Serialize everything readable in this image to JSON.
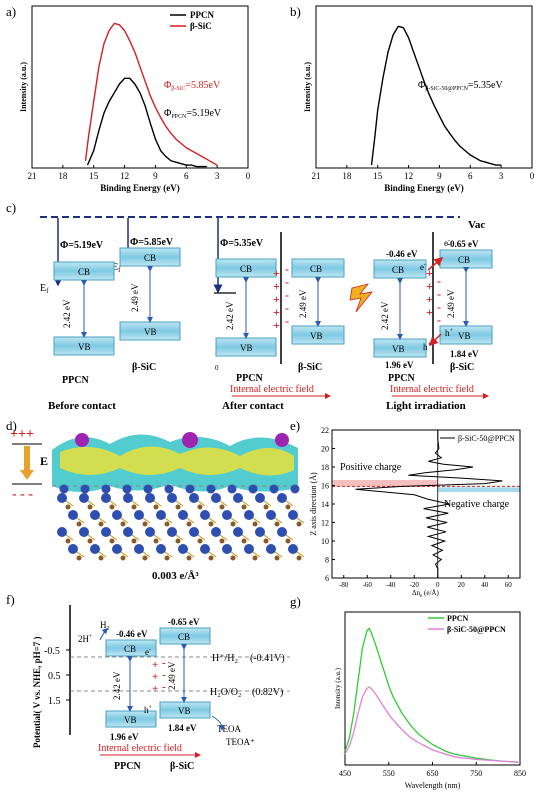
{
  "chart_data": [
    {
      "panel": "a)",
      "type": "line",
      "xlabel": "Binding Energy (eV)",
      "ylabel": "Intensity (a.u.)",
      "xlim": [
        21,
        0
      ],
      "x_ticks": [
        "21",
        "18",
        "15",
        "12",
        "9",
        "6",
        "3",
        "0"
      ],
      "legend": "top-right",
      "series": [
        {
          "name": "PPCN",
          "color": "#000000",
          "x": [
            15.6,
            15.0,
            14.5,
            14.0,
            13.5,
            13.0,
            12.5,
            12.0,
            11.5,
            11.0,
            10.5,
            10.0,
            9.5,
            9.0,
            8.5,
            8.0,
            7.5,
            7.0,
            6.5,
            6.0,
            5.5,
            5.0,
            4.5,
            4.0
          ],
          "y": [
            0.02,
            0.12,
            0.26,
            0.38,
            0.46,
            0.52,
            0.58,
            0.62,
            0.62,
            0.58,
            0.52,
            0.43,
            0.31,
            0.2,
            0.12,
            0.08,
            0.05,
            0.04,
            0.03,
            0.02,
            0.02,
            0.01,
            0.01,
            0.01
          ]
        },
        {
          "name": "β-SiC",
          "color": "#d42020",
          "x": [
            15.8,
            15.5,
            15.0,
            14.5,
            14.0,
            13.5,
            13.0,
            12.5,
            12.0,
            11.5,
            11.0,
            10.5,
            10.0,
            9.5,
            9.0,
            8.5,
            8.0,
            7.5,
            7.0,
            6.5,
            6.0,
            5.5,
            5.0,
            4.5,
            4.0,
            3.5,
            3.0
          ],
          "y": [
            0.05,
            0.22,
            0.46,
            0.7,
            0.86,
            0.95,
            1.0,
            0.99,
            0.95,
            0.88,
            0.8,
            0.7,
            0.6,
            0.5,
            0.42,
            0.35,
            0.29,
            0.24,
            0.2,
            0.17,
            0.14,
            0.12,
            0.1,
            0.08,
            0.06,
            0.04,
            0.02
          ]
        }
      ],
      "annotations": [
        {
          "text": "Φ",
          "sub": "β-SiC",
          "value": "=5.85eV",
          "color": "#d42020"
        },
        {
          "text": "Φ",
          "sub": "PPCN",
          "value": "=5.19eV",
          "color": "#000000"
        }
      ]
    },
    {
      "panel": "b)",
      "type": "line",
      "xlabel": "Binding Energy (eV)",
      "ylabel": "Intensity (a.u.)",
      "xlim": [
        21,
        0
      ],
      "x_ticks": [
        "21",
        "18",
        "15",
        "12",
        "9",
        "6",
        "3",
        "0"
      ],
      "series": [
        {
          "name": "",
          "color": "#000000",
          "x": [
            15.6,
            15.3,
            15.0,
            14.5,
            14.0,
            13.5,
            13.0,
            12.5,
            12.0,
            11.5,
            11.0,
            10.5,
            10.0,
            9.5,
            9.0,
            8.5,
            8.0,
            7.5,
            7.0,
            6.5,
            6.0,
            5.5,
            5.0,
            4.5,
            4.0,
            3.5,
            3.0
          ],
          "y": [
            0.02,
            0.2,
            0.4,
            0.62,
            0.8,
            0.92,
            0.98,
            0.97,
            0.9,
            0.8,
            0.7,
            0.6,
            0.51,
            0.43,
            0.36,
            0.29,
            0.24,
            0.19,
            0.15,
            0.12,
            0.09,
            0.07,
            0.05,
            0.04,
            0.03,
            0.02,
            0.02
          ]
        }
      ],
      "annotations": [
        {
          "text": "Φ",
          "sub": "β-SiC-50@PPCN",
          "value": "=5.35eV",
          "color": "#000000"
        }
      ]
    },
    {
      "panel": "e)",
      "type": "line",
      "xlabel": "Δn",
      "xlabel_sub": "e",
      "xlabel_unit": "(e/Å)",
      "ylabel": "Z axis direction (Å)",
      "xlim": [
        -90,
        70
      ],
      "ylim": [
        6,
        22
      ],
      "x_ticks": [
        "-80",
        "-60",
        "-40",
        "-20",
        "0",
        "20",
        "40",
        "60"
      ],
      "y_ticks": [
        "6",
        "8",
        "10",
        "12",
        "14",
        "16",
        "18",
        "20",
        "22"
      ],
      "series": [
        {
          "name": "β-SiC-50@PPCN",
          "color": "#000000",
          "y": [
            6.0,
            7.0,
            7.5,
            8.0,
            8.5,
            9.0,
            9.5,
            10.0,
            10.5,
            11.0,
            11.5,
            12.0,
            12.5,
            13.0,
            13.5,
            14.0,
            14.5,
            15.0,
            15.3,
            15.6,
            15.9,
            16.2,
            16.5,
            16.8,
            17.1,
            17.4,
            17.7,
            18.0,
            18.3,
            18.6,
            19.0,
            19.5,
            20.0,
            21.0,
            22.0
          ],
          "x": [
            0,
            0,
            -2,
            3,
            -4,
            4,
            -5,
            6,
            -8,
            7,
            -9,
            8,
            -10,
            9,
            -12,
            10,
            -8,
            -20,
            -45,
            -70,
            -30,
            40,
            55,
            20,
            -25,
            -10,
            15,
            30,
            5,
            -8,
            3,
            -2,
            1,
            0,
            0
          ]
        }
      ],
      "annotations": [
        {
          "text": "Positive charge"
        },
        {
          "text": "Negative charge"
        }
      ]
    },
    {
      "panel": "g)",
      "type": "line",
      "xlabel": "Wavelength (nm)",
      "ylabel": "Intensity (a.u.)",
      "xlim": [
        450,
        850
      ],
      "x_ticks": [
        "450",
        "550",
        "650",
        "750",
        "850"
      ],
      "legend": "top-right",
      "series": [
        {
          "name": "PPCN",
          "color": "#33cc33",
          "x": [
            450,
            460,
            470,
            480,
            490,
            500,
            505,
            510,
            520,
            530,
            540,
            550,
            560,
            580,
            600,
            620,
            650,
            680,
            700,
            750,
            800,
            850
          ],
          "y": [
            0.1,
            0.2,
            0.38,
            0.62,
            0.86,
            0.98,
            1.0,
            0.97,
            0.88,
            0.78,
            0.68,
            0.58,
            0.5,
            0.38,
            0.29,
            0.22,
            0.15,
            0.1,
            0.08,
            0.05,
            0.03,
            0.02
          ]
        },
        {
          "name": "β-SiC-50@PPCN",
          "color": "#e080e0",
          "x": [
            450,
            460,
            470,
            480,
            490,
            500,
            505,
            510,
            520,
            530,
            540,
            550,
            560,
            580,
            600,
            620,
            650,
            680,
            700,
            750,
            800,
            850
          ],
          "y": [
            0.08,
            0.14,
            0.24,
            0.38,
            0.5,
            0.56,
            0.57,
            0.56,
            0.52,
            0.47,
            0.42,
            0.37,
            0.33,
            0.26,
            0.2,
            0.16,
            0.11,
            0.08,
            0.06,
            0.04,
            0.03,
            0.02
          ]
        }
      ]
    }
  ],
  "panel_labels": {
    "a": "a)",
    "b": "b)",
    "c": "c)",
    "d": "d)",
    "e": "e)",
    "f": "f)",
    "g": "g)"
  },
  "diagram_c": {
    "vac": "Vac",
    "phi_ppcn": "Φ=5.19eV",
    "phi_sic": "Φ=5.85eV",
    "phi_after": "Φ=5.35eV",
    "ef": "E",
    "ef_sub": "f",
    "cb": "CB",
    "vb": "VB",
    "gap_ppcn": "2.42 eV",
    "gap_sic": "2.49 eV",
    "ppcn": "PPCN",
    "sic": "β-SiC",
    "before": "Before contact",
    "after": "After contact",
    "light": "Light irradiation",
    "ief": "Internal electric field",
    "cb_ppcn_e": "-0.46 eV",
    "cb_sic_e": "-0.65 eV",
    "vb_ppcn_e": "1.96 eV",
    "vb_sic_e": "1.84 eV",
    "electron": "e",
    "hole": "h",
    "small_o": "0"
  },
  "panel_d": {
    "e_label": "E",
    "iso": "0.003 e/Å³"
  },
  "diagram_f": {
    "ylabel": "Potential( V vs. NHE, pH=7 )",
    "ticks": [
      "-0.5",
      "0.5",
      "1.5"
    ],
    "h2": "H",
    "h2_sub": "2",
    "twoh": "2H",
    "twoh_sup": "+",
    "hh2": "H⁺/H₂",
    "hh2_v": "(-0.41V)",
    "h2o": "H₂O/O₂",
    "h2o_v": "(0.82V)",
    "teoa": "TEOA",
    "teoa_plus": "TEOA⁺",
    "cb_ppcn_e": "-0.46 eV",
    "cb_sic_e": "-0.65 eV",
    "vb_ppcn_e": "1.96 eV",
    "vb_sic_e": "1.84 eV",
    "gap_ppcn": "2.42 eV",
    "gap_sic": "2.49 eV",
    "cb": "CB",
    "vb": "VB",
    "ppcn": "PPCN",
    "sic": "β-SiC",
    "ief": "Internal electric field",
    "electron": "e",
    "hole": "h"
  }
}
